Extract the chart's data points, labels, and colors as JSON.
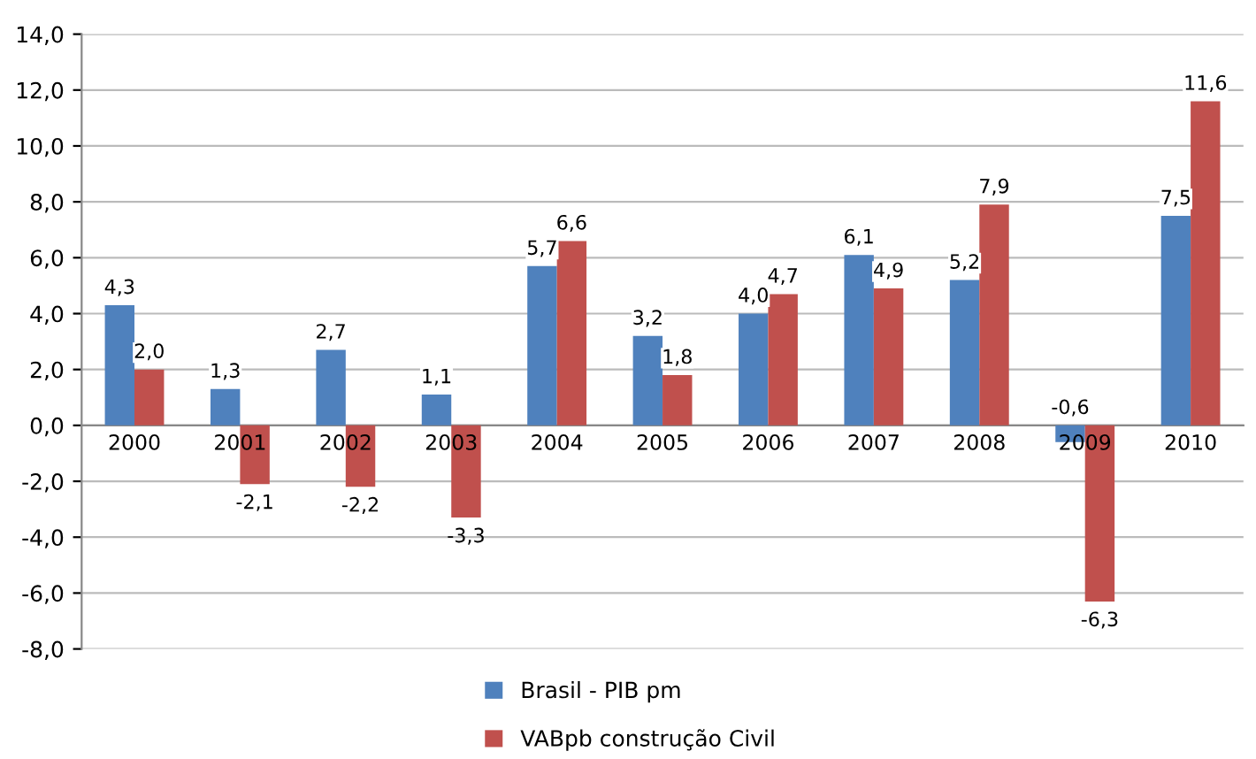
{
  "chart_data": {
    "type": "bar",
    "categories": [
      "2000",
      "2001",
      "2002",
      "2003",
      "2004",
      "2005",
      "2006",
      "2007",
      "2008",
      "2009",
      "2010"
    ],
    "series": [
      {
        "name": "Brasil - PIB pm",
        "color": "#4f81bd",
        "values": [
          4.3,
          1.3,
          2.7,
          1.1,
          5.7,
          3.2,
          4.0,
          6.1,
          5.2,
          -0.6,
          7.5
        ],
        "value_labels": [
          "4,3",
          "1,3",
          "2,7",
          "1,1",
          "5,7",
          "3,2",
          "4,0",
          "6,1",
          "5,2",
          "-0,6",
          "7,5"
        ]
      },
      {
        "name": "VABpb construção Civil",
        "color": "#c0504d",
        "values": [
          2.0,
          -2.1,
          -2.2,
          -3.3,
          6.6,
          1.8,
          4.7,
          4.9,
          7.9,
          -6.3,
          11.6
        ],
        "value_labels": [
          "2,0",
          "-2,1",
          "-2,2",
          "-3,3",
          "6,6",
          "1,8",
          "4,7",
          "4,9",
          "7,9",
          "-6,3",
          "11,6"
        ]
      }
    ],
    "ylim": [
      -8,
      14
    ],
    "yticks": [
      {
        "value": -8,
        "label": "-8,0"
      },
      {
        "value": -6,
        "label": "-6,0"
      },
      {
        "value": -4,
        "label": "-4,0"
      },
      {
        "value": -2,
        "label": "-2,0"
      },
      {
        "value": 0,
        "label": "0,0"
      },
      {
        "value": 2,
        "label": "2,0"
      },
      {
        "value": 4,
        "label": "4,0"
      },
      {
        "value": 6,
        "label": "6,0"
      },
      {
        "value": 8,
        "label": "8,0"
      },
      {
        "value": 10,
        "label": "10,0"
      },
      {
        "value": 12,
        "label": "12,0"
      },
      {
        "value": 14,
        "label": "14,0"
      }
    ],
    "grid": "y",
    "legend": "bottom"
  }
}
